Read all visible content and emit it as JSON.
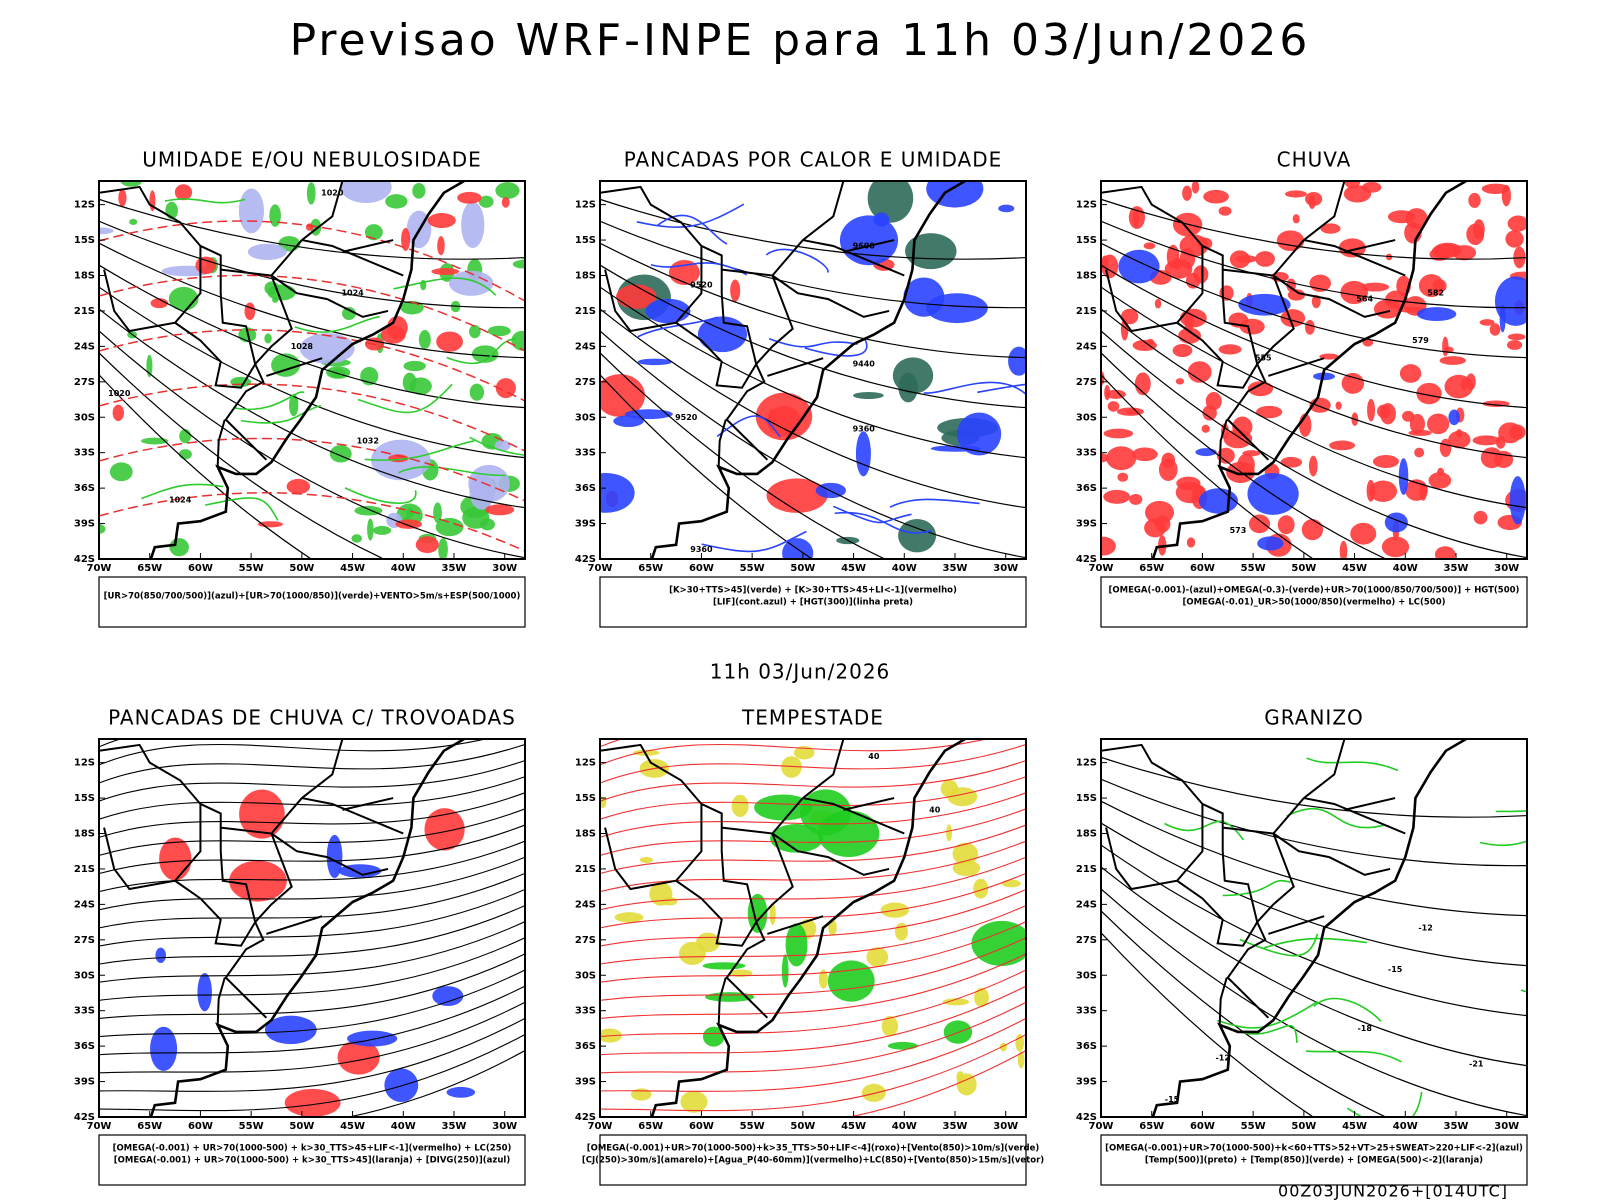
{
  "title": "Previsao WRF-INPE  para 11h 03/Jun/2026",
  "subtitle": "11h 03/Jun/2026",
  "footer": "00Z03JUN2026+[014UTC]",
  "lat_labels": [
    "12S",
    "15S",
    "18S",
    "21S",
    "24S",
    "27S",
    "30S",
    "33S",
    "36S",
    "39S",
    "42S"
  ],
  "lon_labels": [
    "70W",
    "65W",
    "60W",
    "55W",
    "50W",
    "45W",
    "40W",
    "35W",
    "30W"
  ],
  "panels": [
    {
      "title": "UMIDADE E/OU NEBULOSIDADE",
      "legend": [
        "[UR>70(850/700/500)](azul)+[UR>70(1000/850)](verde)+VENTO>5m/s+ESP(500/1000)"
      ],
      "contour_labels": [
        "1020",
        "1024",
        "1028",
        "1032",
        "1020",
        "1024"
      ]
    },
    {
      "title": "PANCADAS POR CALOR E UMIDADE",
      "legend": [
        "[K>30+TTS>45](verde) + [K>30+TTS>45+LI<-1](vermelho)",
        "[LIF](cont.azul) + [HGT(300)](linha preta)"
      ],
      "contour_labels": [
        "9600",
        "9520",
        "9440",
        "9360",
        "9520",
        "9360"
      ]
    },
    {
      "title": "CHUVA",
      "legend": [
        "[OMEGA(-0.001)-(azul)+OMEGA(-0.3)-(verde)+UR>70(1000/850/700/500)] + HGT(500)",
        "[OMEGA(-0.01)_UR>50(1000/850)(vermelho) + LC(500)"
      ],
      "contour_labels": [
        "564",
        "579",
        "582",
        "573",
        "555"
      ]
    },
    {
      "title": "PANCADAS DE CHUVA C/ TROVOADAS",
      "legend": [
        "[OMEGA(-0.001) + UR>70(1000-500) + k>30_TTS>45+LIF<-1](vermelho) + LC(250)",
        "[OMEGA(-0.001) + UR>70(1000-500) + k>30_TTS>45](laranja) + [DIVG(250)](azul)"
      ],
      "contour_labels": []
    },
    {
      "title": "TEMPESTADE",
      "legend": [
        "[OMEGA(-0.001)+UR>70(1000-500)+k>35_TTS>50+LIF<-4](roxo)+[Vento(850)>10m/s](verde)",
        "[CJ(250)>30m/s](amarelo)+[Agua_P(40-60mm)](vermelho)+LC(850)+[Vento(850)>15m/s](vetor)"
      ],
      "contour_labels": [
        "40",
        "40"
      ]
    },
    {
      "title": "GRANIZO",
      "legend": [
        "[OMEGA(-0.001)+UR>70(1000-500)+k<60+TTS>52+VT>25+SWEAT>220+LIF<-2](azul)",
        "[Temp(500)](preto) + [Temp(850)](verde) + [OMEGA(500)<-2](laranja)"
      ],
      "contour_labels": [
        "-12",
        "-15",
        "-18",
        "-21",
        "-12",
        "-15"
      ]
    }
  ]
}
